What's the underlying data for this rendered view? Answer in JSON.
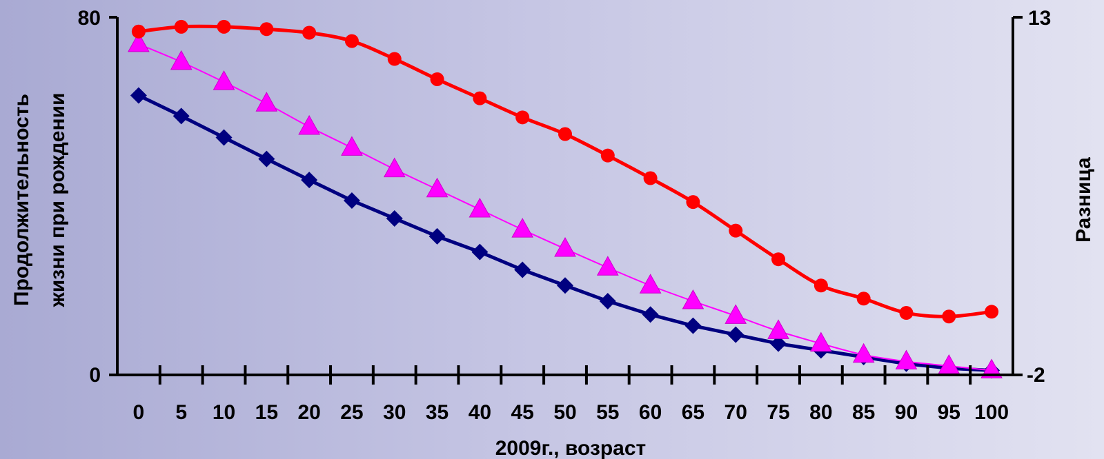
{
  "chart_data": {
    "type": "line",
    "xlabel": "2009г., возраст",
    "ylabel_lines": [
      "Продолжительность",
      "жизни при рождении"
    ],
    "y2label": "Разница",
    "x": [
      0,
      5,
      10,
      15,
      20,
      25,
      30,
      35,
      40,
      45,
      50,
      55,
      60,
      65,
      70,
      75,
      80,
      85,
      90,
      95,
      100
    ],
    "ylim": [
      0,
      80
    ],
    "y2lim": [
      -2,
      13
    ],
    "yticks": [
      "0",
      "80"
    ],
    "y2ticks": [
      "-2",
      "13"
    ],
    "grid": false,
    "legend": "none",
    "series": [
      {
        "axis": "left",
        "marker": "diamond",
        "color": "#000080",
        "values": [
          62.5,
          57.9,
          53.1,
          48.3,
          43.6,
          39.0,
          35.0,
          31.0,
          27.5,
          23.5,
          20.0,
          16.5,
          13.5,
          11.0,
          9.0,
          7.0,
          5.5,
          4.0,
          2.5,
          1.5,
          1.0
        ]
      },
      {
        "axis": "left",
        "marker": "triangle",
        "color": "#ff00ff",
        "values": [
          74.0,
          70.0,
          65.5,
          60.7,
          55.5,
          50.8,
          46.0,
          41.5,
          37.0,
          32.5,
          28.2,
          24.0,
          20.0,
          16.5,
          13.2,
          9.8,
          7.0,
          4.5,
          3.0,
          2.0,
          1.0
        ]
      },
      {
        "axis": "right",
        "marker": "circle",
        "color": "#ff0000",
        "values": [
          12.4,
          12.6,
          12.6,
          12.5,
          12.35,
          12.0,
          11.25,
          10.4,
          9.6,
          8.8,
          8.1,
          7.2,
          6.25,
          5.25,
          4.05,
          2.85,
          1.75,
          1.2,
          0.6,
          0.45,
          0.65
        ]
      }
    ]
  }
}
